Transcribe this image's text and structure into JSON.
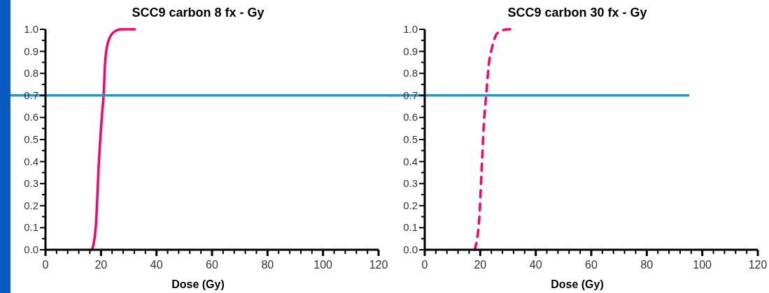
{
  "chart_data": [
    {
      "type": "line",
      "title": "SCC9 carbon 8 fx - Gy",
      "xlabel": "Dose (Gy)",
      "line_style": "solid",
      "marker": "none",
      "grid": false,
      "series": [
        {
          "color": "#ff0066",
          "x": [
            16.8,
            18.1,
            19.3,
            20.4,
            21.0,
            21.4,
            22.3,
            24.4,
            27.3,
            32.2
          ],
          "values": [
            0,
            0.1,
            0.41,
            0.62,
            0.71,
            0.83,
            0.93,
            0.985,
            1.0,
            1.0
          ]
        }
      ],
      "xlim": [
        0,
        120
      ],
      "ylim": [
        0,
        1
      ],
      "xticks": [
        0,
        {
          "value": 4,
          "label": null
        },
        {
          "value": 8,
          "label": null
        },
        {
          "value": 12,
          "label": null
        },
        {
          "value": 16,
          "label": null
        },
        20,
        {
          "value": 24,
          "label": null
        },
        {
          "value": 28,
          "label": null
        },
        {
          "value": 32,
          "label": null
        },
        {
          "value": 36,
          "label": null
        },
        40,
        {
          "value": 44,
          "label": null
        },
        {
          "value": 48,
          "label": null
        },
        {
          "value": 52,
          "label": null
        },
        {
          "value": 56,
          "label": null
        },
        60,
        {
          "value": 64,
          "label": null
        },
        {
          "value": 68,
          "label": null
        },
        {
          "value": 72,
          "label": null
        },
        {
          "value": 76,
          "label": null
        },
        80,
        {
          "value": 84,
          "label": null
        },
        {
          "value": 88,
          "label": null
        },
        {
          "value": 92,
          "label": null
        },
        {
          "value": 96,
          "label": null
        },
        100,
        {
          "value": 104,
          "label": null
        },
        {
          "value": 108,
          "label": null
        },
        {
          "value": 112,
          "label": null
        },
        {
          "value": 116,
          "label": null
        },
        120
      ],
      "yticks": [
        {
          "value": 0,
          "label": "0.0"
        },
        {
          "value": 0.05,
          "label": null
        },
        {
          "value": 0.1,
          "label": "0.1"
        },
        {
          "value": 0.15,
          "label": null
        },
        {
          "value": 0.2,
          "label": "0.2"
        },
        {
          "value": 0.25,
          "label": null
        },
        {
          "value": 0.3,
          "label": "0.3"
        },
        {
          "value": 0.35,
          "label": null
        },
        {
          "value": 0.4,
          "label": "0.4"
        },
        {
          "value": 0.45,
          "label": null
        },
        {
          "value": 0.5,
          "label": "0.5"
        },
        {
          "value": 0.55,
          "label": null
        },
        {
          "value": 0.6,
          "label": "0.6"
        },
        {
          "value": 0.65,
          "label": null
        },
        {
          "value": 0.7,
          "label": "0.7"
        },
        {
          "value": 0.75,
          "label": null
        },
        {
          "value": 0.8,
          "label": "0.8"
        },
        {
          "value": 0.85,
          "label": null
        },
        {
          "value": 0.9,
          "label": "0.9"
        },
        {
          "value": 0.95,
          "label": null
        },
        {
          "value": 1,
          "label": "1.0"
        }
      ],
      "ref_lines": [
        {
          "axis": "y",
          "value": 0.7,
          "color": "#1a9ad6"
        }
      ]
    },
    {
      "type": "line",
      "title": "SCC9 carbon 30 fx - Gy",
      "xlabel": "Dose (Gy)",
      "line_style": "dashed",
      "marker": "none",
      "grid": false,
      "series": [
        {
          "color": "#ff0066",
          "x": [
            18.0,
            19.7,
            20.5,
            21.3,
            22.2,
            23.0,
            24.3,
            26.4,
            30.2,
            32.9
          ],
          "values": [
            0,
            0.15,
            0.36,
            0.57,
            0.71,
            0.83,
            0.92,
            0.985,
            1.0,
            1.0
          ]
        }
      ],
      "xlim": [
        0,
        120
      ],
      "ylim": [
        0,
        1
      ],
      "xticks": [
        0,
        {
          "value": 4,
          "label": null
        },
        {
          "value": 8,
          "label": null
        },
        {
          "value": 12,
          "label": null
        },
        {
          "value": 16,
          "label": null
        },
        20,
        {
          "value": 24,
          "label": null
        },
        {
          "value": 28,
          "label": null
        },
        {
          "value": 32,
          "label": null
        },
        {
          "value": 36,
          "label": null
        },
        40,
        {
          "value": 44,
          "label": null
        },
        {
          "value": 48,
          "label": null
        },
        {
          "value": 52,
          "label": null
        },
        {
          "value": 56,
          "label": null
        },
        60,
        {
          "value": 64,
          "label": null
        },
        {
          "value": 68,
          "label": null
        },
        {
          "value": 72,
          "label": null
        },
        {
          "value": 76,
          "label": null
        },
        80,
        {
          "value": 84,
          "label": null
        },
        {
          "value": 88,
          "label": null
        },
        {
          "value": 92,
          "label": null
        },
        {
          "value": 96,
          "label": null
        },
        100,
        {
          "value": 104,
          "label": null
        },
        {
          "value": 108,
          "label": null
        },
        {
          "value": 112,
          "label": null
        },
        {
          "value": 116,
          "label": null
        },
        120
      ],
      "yticks": [
        {
          "value": 0,
          "label": "0.0"
        },
        {
          "value": 0.05,
          "label": null
        },
        {
          "value": 0.1,
          "label": "0.1"
        },
        {
          "value": 0.15,
          "label": null
        },
        {
          "value": 0.2,
          "label": "0.2"
        },
        {
          "value": 0.25,
          "label": null
        },
        {
          "value": 0.3,
          "label": "0.3"
        },
        {
          "value": 0.35,
          "label": null
        },
        {
          "value": 0.4,
          "label": "0.4"
        },
        {
          "value": 0.45,
          "label": null
        },
        {
          "value": 0.5,
          "label": "0.5"
        },
        {
          "value": 0.55,
          "label": null
        },
        {
          "value": 0.6,
          "label": "0.6"
        },
        {
          "value": 0.65,
          "label": null
        },
        {
          "value": 0.7,
          "label": "0.7"
        },
        {
          "value": 0.75,
          "label": null
        },
        {
          "value": 0.8,
          "label": "0.8"
        },
        {
          "value": 0.85,
          "label": null
        },
        {
          "value": 0.9,
          "label": "0.9"
        },
        {
          "value": 0.95,
          "label": null
        },
        {
          "value": 1,
          "label": "1.0"
        }
      ],
      "ref_lines": [
        {
          "axis": "y",
          "value": 0.7,
          "color": "#1a9ad6"
        }
      ]
    }
  ]
}
